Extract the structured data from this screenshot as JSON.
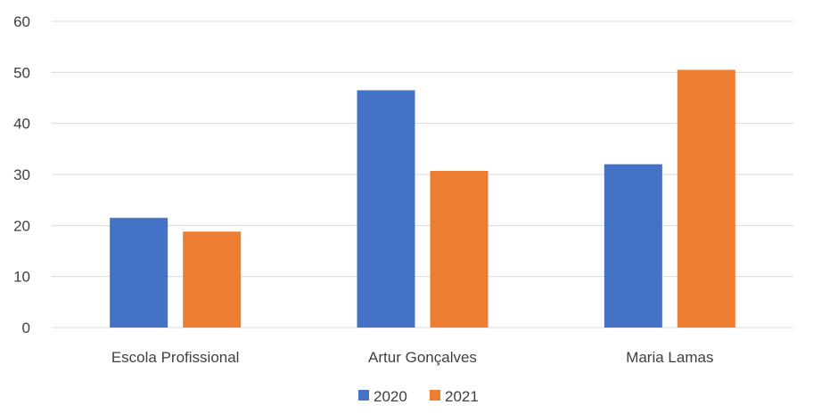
{
  "chart_data": {
    "type": "bar",
    "title": "",
    "xlabel": "",
    "ylabel": "",
    "categories": [
      "Escola Profissional",
      "Artur Gonçalves",
      "Maria Lamas"
    ],
    "series": [
      {
        "name": "2020",
        "color": "#4472c4",
        "values": [
          21.5,
          46.5,
          32
        ]
      },
      {
        "name": "2021",
        "color": "#ed7d31",
        "values": [
          18.8,
          30.7,
          50.5
        ]
      }
    ],
    "ylim": [
      0,
      60
    ],
    "yticks": [
      0,
      10,
      20,
      30,
      40,
      50,
      60
    ],
    "grid": true,
    "legend_position": "bottom"
  }
}
